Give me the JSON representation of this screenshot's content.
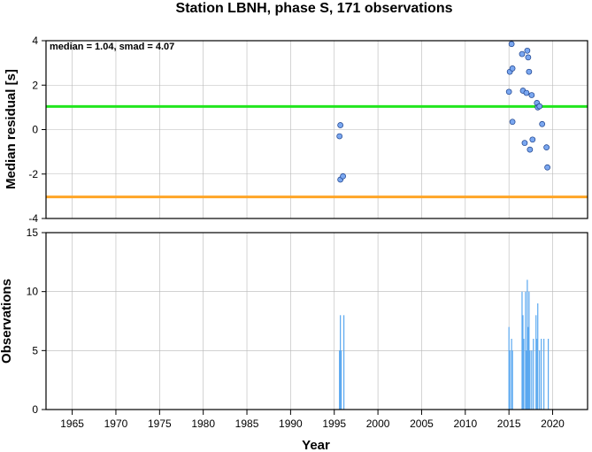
{
  "title": "Station LBNH, phase S, 171 observations",
  "chart_data": [
    {
      "type": "scatter",
      "panel": "top",
      "ylabel": "Median residual [s]",
      "xlim": [
        1962,
        2024
      ],
      "ylim": [
        -4,
        4
      ],
      "yticks": [
        -4,
        -2,
        0,
        2,
        4
      ],
      "grid": true,
      "annotation": "median = 1.04, smad = 4.07",
      "reference_lines": [
        {
          "y": 1.04,
          "color": "#22e61e"
        },
        {
          "y": -3.03,
          "color": "#ffa526"
        }
      ],
      "point_color": "#7aa7f0",
      "points": [
        {
          "x": 1995.7,
          "y": 0.2
        },
        {
          "x": 1995.6,
          "y": -0.3
        },
        {
          "x": 1995.7,
          "y": -2.25
        },
        {
          "x": 1996.0,
          "y": -2.1
        },
        {
          "x": 2015.0,
          "y": 1.7
        },
        {
          "x": 2015.1,
          "y": 2.6
        },
        {
          "x": 2015.3,
          "y": 3.85
        },
        {
          "x": 2015.4,
          "y": 2.75
        },
        {
          "x": 2015.4,
          "y": 0.35
        },
        {
          "x": 2016.5,
          "y": 3.4
        },
        {
          "x": 2016.6,
          "y": 1.75
        },
        {
          "x": 2016.8,
          "y": -0.6
        },
        {
          "x": 2017.0,
          "y": 1.65
        },
        {
          "x": 2017.1,
          "y": 3.55
        },
        {
          "x": 2017.2,
          "y": 3.25
        },
        {
          "x": 2017.3,
          "y": 2.6
        },
        {
          "x": 2017.4,
          "y": -0.9
        },
        {
          "x": 2017.6,
          "y": 1.55
        },
        {
          "x": 2017.7,
          "y": -0.45
        },
        {
          "x": 2018.2,
          "y": 1.2
        },
        {
          "x": 2018.3,
          "y": 1.0
        },
        {
          "x": 2018.5,
          "y": 1.05
        },
        {
          "x": 2018.8,
          "y": 0.25
        },
        {
          "x": 2019.3,
          "y": -0.8
        },
        {
          "x": 2019.4,
          "y": -1.7
        }
      ]
    },
    {
      "type": "bar",
      "panel": "bottom",
      "xlabel": "Year",
      "ylabel": "Observations",
      "xlim": [
        1962,
        2024
      ],
      "ylim": [
        0,
        15
      ],
      "yticks": [
        0,
        5,
        10,
        15
      ],
      "xticks": [
        1965,
        1970,
        1975,
        1980,
        1985,
        1990,
        1995,
        2000,
        2005,
        2010,
        2015,
        2020
      ],
      "grid": true,
      "bar_color": "#5aa8f0",
      "bars": [
        {
          "x": 1995.6,
          "y": 5
        },
        {
          "x": 1995.7,
          "y": 8
        },
        {
          "x": 1995.8,
          "y": 5
        },
        {
          "x": 1996.1,
          "y": 8
        },
        {
          "x": 2015.0,
          "y": 7
        },
        {
          "x": 2015.1,
          "y": 5
        },
        {
          "x": 2015.3,
          "y": 6
        },
        {
          "x": 2015.4,
          "y": 5
        },
        {
          "x": 2016.5,
          "y": 10
        },
        {
          "x": 2016.6,
          "y": 8
        },
        {
          "x": 2016.7,
          "y": 6
        },
        {
          "x": 2016.9,
          "y": 10
        },
        {
          "x": 2017.0,
          "y": 5
        },
        {
          "x": 2017.1,
          "y": 11
        },
        {
          "x": 2017.2,
          "y": 7
        },
        {
          "x": 2017.3,
          "y": 10
        },
        {
          "x": 2017.4,
          "y": 5
        },
        {
          "x": 2017.6,
          "y": 5
        },
        {
          "x": 2017.8,
          "y": 6
        },
        {
          "x": 2018.1,
          "y": 8
        },
        {
          "x": 2018.2,
          "y": 6
        },
        {
          "x": 2018.3,
          "y": 9
        },
        {
          "x": 2018.5,
          "y": 5
        },
        {
          "x": 2018.7,
          "y": 6
        },
        {
          "x": 2019.0,
          "y": 6
        },
        {
          "x": 2019.5,
          "y": 6
        }
      ]
    }
  ]
}
